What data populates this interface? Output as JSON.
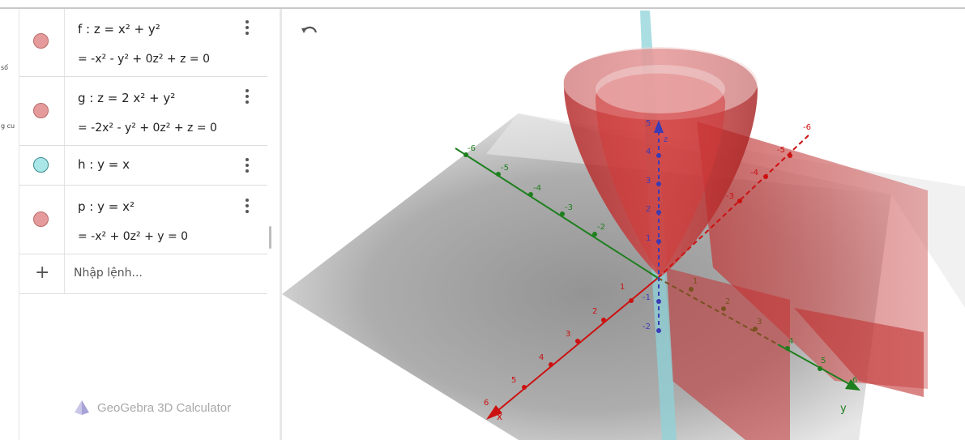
{
  "rail": {
    "labels": [
      "số",
      "g cu"
    ]
  },
  "algebra": {
    "items": [
      {
        "id": "f",
        "definition": "f : z = x² + y²",
        "value": "= -x² - y² + 0z² + z = 0",
        "color": "#e59b9b"
      },
      {
        "id": "g",
        "definition": "g : z = 2 x² + y²",
        "value": "= -2x² - y² + 0z² + z = 0",
        "color": "#e59b9b"
      },
      {
        "id": "h",
        "definition": "h : y = x",
        "value": "",
        "color": "#a9e6e8"
      },
      {
        "id": "p",
        "definition": "p : y = x²",
        "value": "= -x² + 0z² + y = 0",
        "color": "#e59b9b"
      }
    ],
    "input_placeholder": "Nhập lệnh...",
    "brand": "GeoGebra 3D Calculator"
  },
  "view3d": {
    "axis_names": {
      "x": "x",
      "y": "y",
      "z": "z"
    },
    "x_ticks": [
      "1",
      "2",
      "3",
      "4",
      "5",
      "6"
    ],
    "x_neg_ticks": [
      "-3",
      "-4",
      "-5",
      "-6"
    ],
    "y_ticks": [
      "1",
      "2",
      "3",
      "4",
      "5",
      "6"
    ],
    "y_neg_ticks": [
      "-2",
      "-3",
      "-4",
      "-5",
      "-6"
    ],
    "z_ticks": [
      "1",
      "2",
      "3",
      "4",
      "5"
    ],
    "z_neg_ticks": [
      "-1",
      "-2"
    ],
    "colors": {
      "x_axis": "#cc1111",
      "y_axis": "#1e7f1e",
      "z_axis": "#3b3bb5",
      "surface": "#c42a2a",
      "plane_h": "#8fd3d8"
    }
  }
}
